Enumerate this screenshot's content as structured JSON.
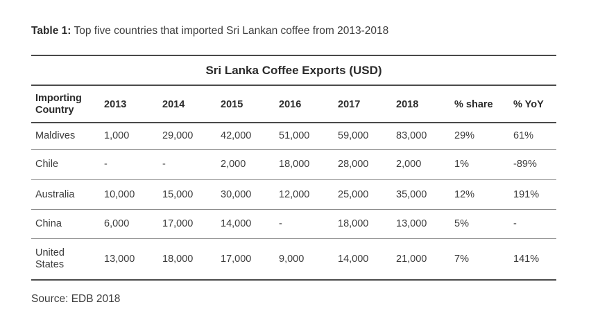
{
  "caption": {
    "label": "Table 1:",
    "text": "Top five countries that imported Sri Lankan coffee from 2013-2018"
  },
  "table": {
    "title": "Sri Lanka Coffee Exports (USD)",
    "headers": [
      "Importing\nCountry",
      "2013",
      "2014",
      "2015",
      "2016",
      "2017",
      "2018",
      "% share",
      "% YoY"
    ],
    "rows": [
      [
        "Maldives",
        "1,000",
        "29,000",
        "42,000",
        "51,000",
        "59,000",
        "83,000",
        "29%",
        "61%"
      ],
      [
        "Chile",
        "-",
        "-",
        "2,000",
        "18,000",
        "28,000",
        "2,000",
        "1%",
        "-89%"
      ],
      [
        "Australia",
        "10,000",
        "15,000",
        "30,000",
        "12,000",
        "25,000",
        "35,000",
        "12%",
        "191%"
      ],
      [
        "China",
        "6,000",
        "17,000",
        "14,000",
        "-",
        "18,000",
        "13,000",
        "5%",
        "-"
      ],
      [
        "United\nStates",
        "13,000",
        "18,000",
        "17,000",
        "9,000",
        "14,000",
        "21,000",
        "7%",
        "141%"
      ]
    ]
  },
  "source": "Source: EDB 2018"
}
